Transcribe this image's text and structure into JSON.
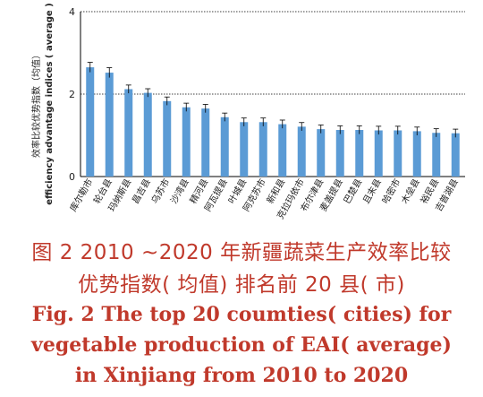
{
  "chart_data": {
    "type": "bar",
    "ylabel_cn": "效率比较优势指数（均值）",
    "ylabel_en": "efficiency advantage indices ( average )",
    "ylim": [
      0,
      4
    ],
    "yticks": [
      0,
      2,
      4
    ],
    "grid": true,
    "error_bars": true,
    "categories": [
      "库尔勒市",
      "轮台县",
      "玛纳斯县",
      "昌吉县",
      "乌苏市",
      "沙湾县",
      "精河县",
      "阿瓦提县",
      "叶城县",
      "阿克苏市",
      "新和县",
      "克拉玛依市",
      "布尔津县",
      "麦盖提县",
      "巴楚县",
      "且末县",
      "哈密市",
      "木垒县",
      "裕民县",
      "吉普湖县"
    ],
    "values": [
      2.65,
      2.52,
      2.12,
      2.03,
      1.83,
      1.68,
      1.65,
      1.44,
      1.32,
      1.32,
      1.27,
      1.21,
      1.15,
      1.13,
      1.13,
      1.12,
      1.12,
      1.1,
      1.06,
      1.05
    ],
    "errors": [
      0.12,
      0.12,
      0.1,
      0.1,
      0.1,
      0.1,
      0.1,
      0.1,
      0.1,
      0.1,
      0.1,
      0.1,
      0.1,
      0.1,
      0.1,
      0.1,
      0.1,
      0.1,
      0.1,
      0.1
    ],
    "bar_color": "#5b9bd5"
  },
  "caption": {
    "cn_line1": "图 2    2010 ~2020 年新疆蔬菜生产效率比较",
    "cn_line2": "优势指数( 均值) 排名前 20 县( 市)",
    "en_line1": "Fig. 2    The top 20 coumties( cities) for",
    "en_line2": "vegetable production of EAI( average)",
    "en_line3": "in Xinjiang from 2010 to 2020"
  },
  "colors": {
    "caption": "#c0392b",
    "bars": "#5b9bd5",
    "error_bars": "#000000"
  }
}
